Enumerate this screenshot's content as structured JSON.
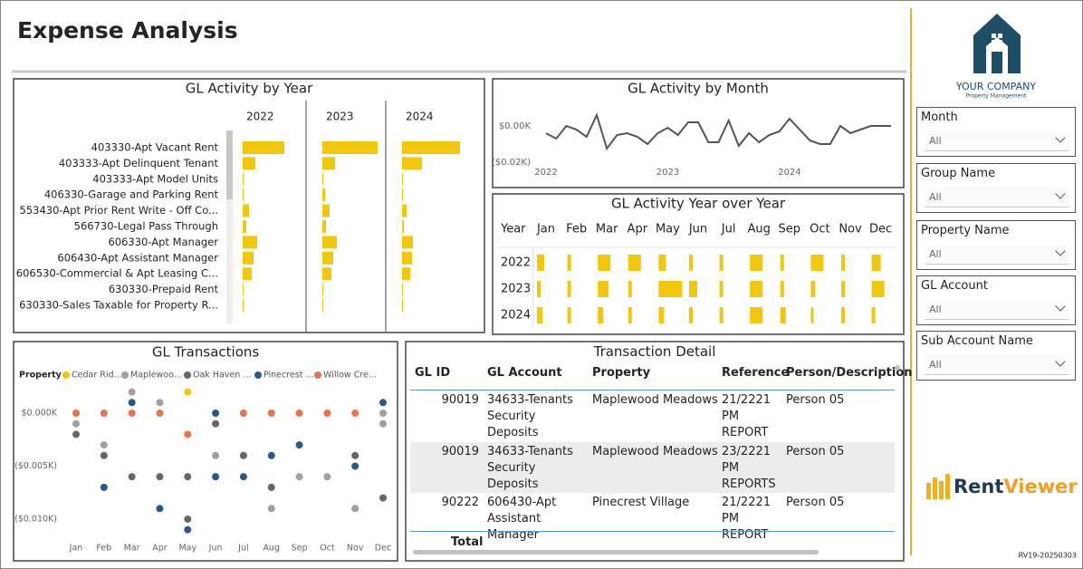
{
  "title": "Expense Analysis",
  "logo": {
    "line1": "YOUR COMPANY",
    "line2": "Property Management"
  },
  "brand": [
    "Rent",
    "Viewer"
  ],
  "version": "RV19-20250303",
  "slicers": [
    {
      "label": "Month",
      "value": "All"
    },
    {
      "label": "Group Name",
      "value": "All"
    },
    {
      "label": "Property Name",
      "value": "All"
    },
    {
      "label": "GL Account",
      "value": "All"
    },
    {
      "label": "Sub Account Name",
      "value": "All"
    }
  ],
  "table": {
    "title": "Transaction Detail",
    "columns": [
      "GL ID",
      "GL Account",
      "Property",
      "Reference",
      "Person/Description"
    ],
    "rows": [
      [
        "90019",
        "34633-Tenants Security Deposits",
        "Maplewood Meadows",
        "21/2221 PM REPORT",
        "Person 05"
      ],
      [
        "90019",
        "34633-Tenants Security Deposits",
        "Maplewood Meadows",
        "23/2221 PM REPORTS",
        "Person 05"
      ],
      [
        "90222",
        "606430-Apt Assistant Manager",
        "Pinecrest Village",
        "21/2221 PM REPORT",
        "Person 05"
      ]
    ],
    "total": "Total"
  },
  "chart_data": [
    {
      "type": "bar",
      "title": "GL Activity by Year",
      "categories": [
        "403330-Apt Vacant Rent",
        "403333-Apt Delinquent Tenant",
        "403333-Apt Model Units",
        "406330-Garage and Parking Rent",
        "553430-Apt Prior Rent Write - Off Co...",
        "566730-Legal Pass Through",
        "606330-Apt Manager",
        "606430-Apt Assistant Manager",
        "606530-Commercial & Apt Leasing C...",
        "630330-Prepaid Rent",
        "630330-Sales Taxable for Property R..."
      ],
      "series": [
        {
          "name": "2022",
          "color": "#f2c80f",
          "values": [
            46,
            14,
            1,
            1,
            7,
            4,
            16,
            12,
            10,
            1,
            1
          ]
        },
        {
          "name": "2023",
          "color": "#f2c80f",
          "values": [
            61,
            14,
            1,
            3,
            8,
            4,
            16,
            12,
            10,
            1,
            1
          ]
        },
        {
          "name": "2024",
          "color": "#f2c80f",
          "values": [
            64,
            22,
            1,
            1,
            5,
            2,
            12,
            11,
            9,
            1,
            1
          ]
        }
      ],
      "xlim": [
        0,
        70
      ]
    },
    {
      "type": "line",
      "title": "GL Activity by Month",
      "categories": [
        "2022",
        null,
        null,
        null,
        null,
        null,
        null,
        null,
        null,
        null,
        null,
        null,
        "2023",
        null,
        null,
        null,
        null,
        null,
        null,
        null,
        null,
        null,
        null,
        null,
        "2024",
        null,
        null,
        null,
        null,
        null,
        null,
        null,
        null,
        null,
        null
      ],
      "values": [
        -0.004,
        -0.007,
        0,
        -0.002,
        -0.006,
        0.006,
        -0.0125,
        -0.005,
        -0.004,
        -0.006,
        -0.01,
        -0.004,
        -0.001,
        -0.005,
        0.002,
        0.002,
        -0.009,
        -0.009,
        0.003,
        -0.011,
        -0.004,
        -0.009,
        -0.005,
        -0.003,
        0.004,
        -0.002,
        -0.008,
        -0.01,
        -0.01,
        0,
        -0.004,
        -0.002,
        0,
        0,
        0
      ],
      "color": "#555555",
      "ylim": [
        -0.025,
        0.008
      ],
      "yticks": [
        {
          "value": 0,
          "label": "$0.00K"
        },
        {
          "value": -0.02,
          "label": "($0.02K)"
        }
      ]
    },
    {
      "type": "bar",
      "title": "GL Activity Year over Year",
      "row_header": "Year",
      "categories": [
        "Jan",
        "Feb",
        "Mar",
        "Apr",
        "May",
        "Jun",
        "Jul",
        "Aug",
        "Sep",
        "Oct",
        "Nov",
        "Dec"
      ],
      "series": [
        {
          "name": "2022",
          "color": "#f2c80f",
          "values": [
            8,
            4,
            14,
            14,
            8,
            4,
            4,
            14,
            4,
            14,
            4,
            10
          ]
        },
        {
          "name": "2023",
          "color": "#f2c80f",
          "values": [
            4,
            4,
            12,
            4,
            26,
            9,
            4,
            14,
            4,
            5,
            4,
            14
          ]
        },
        {
          "name": "2024",
          "color": "#f2c80f",
          "values": [
            6,
            4,
            6,
            4,
            6,
            4,
            4,
            14,
            6,
            3,
            4,
            4
          ]
        }
      ],
      "xlim": [
        0,
        30
      ]
    },
    {
      "type": "scatter",
      "title": "GL Transactions",
      "legend_title": "Property",
      "categories": [
        "Jan",
        "Feb",
        "Mar",
        "Apr",
        "May",
        "Jun",
        "Jul",
        "Aug",
        "Sep",
        "Oct",
        "Nov",
        "Dec"
      ],
      "series": [
        {
          "name": "Cedar Rid...",
          "color": "#f2c80f",
          "x": [
            "May"
          ],
          "values": [
            0.002
          ]
        },
        {
          "name": "Maplewoo...",
          "color": "#a0a0a0",
          "x": [
            "Jan",
            "Feb",
            "Mar",
            "Apr",
            "Jun",
            "Aug",
            "Sep",
            "Oct",
            "Nov",
            "Dec",
            "Dec"
          ],
          "values": [
            -0.001,
            -0.003,
            0.002,
            0.001,
            -0.004,
            -0.009,
            -0.006,
            -0.006,
            -0.009,
            0,
            -0.001
          ]
        },
        {
          "name": "Oak Haven ...",
          "color": "#666666",
          "x": [
            "Jan",
            "Feb",
            "Mar",
            "Apr",
            "May",
            "May",
            "Jun",
            "Jul",
            "Aug",
            "Nov",
            "Dec"
          ],
          "values": [
            -0.002,
            -0.004,
            -0.006,
            -0.006,
            -0.006,
            -0.01,
            -0.001,
            -0.004,
            -0.007,
            -0.004,
            -0.008
          ]
        },
        {
          "name": "Pinecrest ...",
          "color": "#2a5a8c",
          "x": [
            "Feb",
            "Mar",
            "Apr",
            "May",
            "Jun",
            "Jun",
            "Jul",
            "Aug",
            "Sep",
            "Nov",
            "Dec"
          ],
          "values": [
            -0.007,
            0.001,
            -0.009,
            -0.011,
            0,
            -0.006,
            -0.006,
            -0.004,
            -0.003,
            -0.005,
            0.001
          ]
        },
        {
          "name": "Willow Cre...",
          "color": "#e8744f",
          "x": [
            "Jan",
            "Feb",
            "Mar",
            "Apr",
            "May",
            "Jul",
            "Aug",
            "Sep",
            "Oct",
            "Nov"
          ],
          "values": [
            0,
            0,
            0,
            0,
            -0.002,
            0,
            0,
            0,
            0,
            0
          ]
        }
      ],
      "ylim": [
        -0.0115,
        0.0026
      ],
      "yticks": [
        {
          "value": 0,
          "label": "$0.000K"
        },
        {
          "value": -0.005,
          "label": "($0.005K)"
        },
        {
          "value": -0.01,
          "label": "($0.010K)"
        }
      ]
    }
  ]
}
